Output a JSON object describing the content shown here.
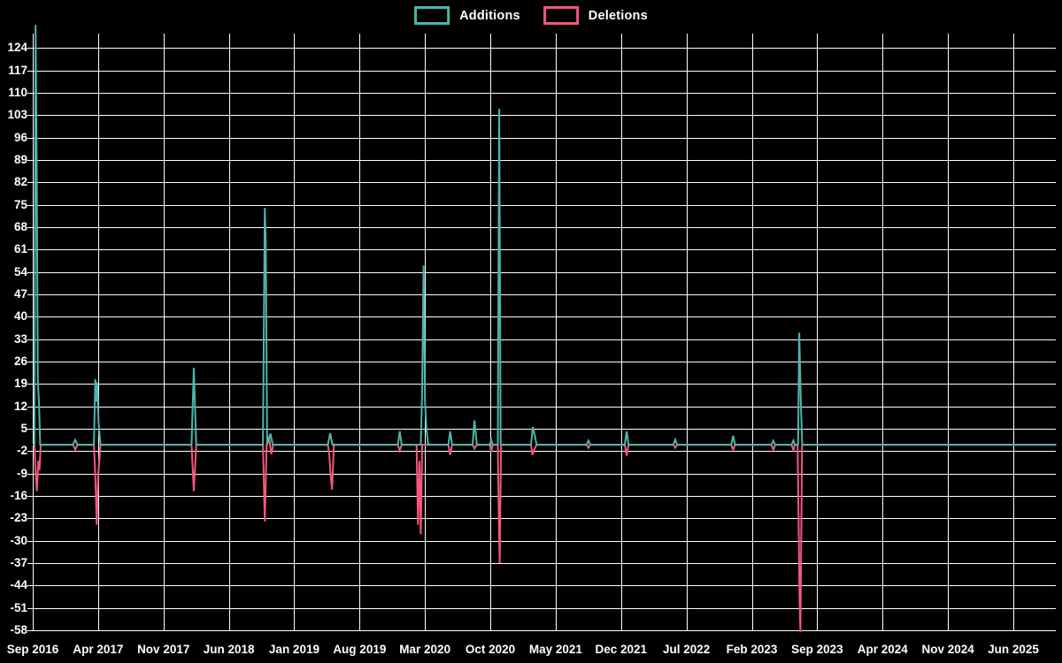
{
  "colors": {
    "background": "#000000",
    "grid": "#ffffff",
    "text": "#ffffff",
    "additions": "#4db6ac",
    "deletions": "#f4587c"
  },
  "legend": {
    "items": [
      {
        "label": "Additions",
        "color": "#4db6ac"
      },
      {
        "label": "Deletions",
        "color": "#f4587c"
      }
    ]
  },
  "chart_data": {
    "type": "line",
    "title": "",
    "xlabel": "",
    "ylabel": "",
    "legend_position": "top-center",
    "grid": true,
    "x_axis": {
      "unit": "months since Sep 2016",
      "range": [
        0,
        109.6
      ],
      "tick_months": [
        0,
        7,
        14,
        21,
        28,
        35,
        42,
        49,
        56,
        63,
        70,
        77,
        84,
        91,
        98,
        105
      ],
      "tick_labels": [
        "Sep 2016",
        "Apr 2017",
        "Nov 2017",
        "Jun 2018",
        "Jan 2019",
        "Aug 2019",
        "Mar 2020",
        "Oct 2020",
        "May 2021",
        "Dec 2021",
        "Jul 2022",
        "Feb 2023",
        "Sep 2023",
        "Apr 2024",
        "Nov 2024",
        "Jun 2025"
      ]
    },
    "y_axis": {
      "range": [
        -58,
        131
      ],
      "ticks": [
        124,
        117,
        110,
        103,
        96,
        89,
        82,
        75,
        68,
        61,
        54,
        47,
        40,
        33,
        26,
        19,
        12,
        5,
        -2,
        -9,
        -16,
        -23,
        -30,
        -37,
        -44,
        -51,
        -58
      ]
    },
    "series": [
      {
        "name": "Additions",
        "color": "#4db6ac",
        "points": [
          [
            0,
            0
          ],
          [
            0.18,
            0
          ],
          [
            0.3,
            131.5
          ],
          [
            0.42,
            89
          ],
          [
            0.55,
            20
          ],
          [
            0.68,
            12
          ],
          [
            0.8,
            0
          ],
          [
            4.3,
            0
          ],
          [
            4.55,
            1.5
          ],
          [
            4.8,
            0
          ],
          [
            6.55,
            0
          ],
          [
            6.7,
            20.5
          ],
          [
            6.8,
            13.5
          ],
          [
            6.9,
            19.5
          ],
          [
            7.05,
            7
          ],
          [
            7.25,
            0
          ],
          [
            17.0,
            0
          ],
          [
            17.25,
            24
          ],
          [
            17.5,
            0
          ],
          [
            24.65,
            0
          ],
          [
            24.85,
            74
          ],
          [
            24.95,
            63
          ],
          [
            25.1,
            0
          ],
          [
            25.45,
            3.5
          ],
          [
            25.7,
            0
          ],
          [
            31.6,
            0
          ],
          [
            31.85,
            3.6
          ],
          [
            32.1,
            0
          ],
          [
            39.1,
            0
          ],
          [
            39.3,
            4.2
          ],
          [
            39.5,
            0
          ],
          [
            41.55,
            0
          ],
          [
            41.7,
            17
          ],
          [
            41.85,
            56
          ],
          [
            42.0,
            14
          ],
          [
            42.15,
            5
          ],
          [
            42.35,
            0
          ],
          [
            44.5,
            0
          ],
          [
            44.7,
            4.2
          ],
          [
            44.9,
            0
          ],
          [
            47.1,
            0
          ],
          [
            47.3,
            7.6
          ],
          [
            47.55,
            0
          ],
          [
            48.95,
            0
          ],
          [
            49.1,
            1.5
          ],
          [
            49.25,
            0
          ],
          [
            49.8,
            0
          ],
          [
            49.95,
            105
          ],
          [
            50.1,
            0
          ],
          [
            53.35,
            0
          ],
          [
            53.55,
            5.6
          ],
          [
            53.75,
            3
          ],
          [
            53.95,
            0
          ],
          [
            59.3,
            0
          ],
          [
            59.5,
            1.3
          ],
          [
            59.7,
            0
          ],
          [
            63.4,
            0
          ],
          [
            63.6,
            4.2
          ],
          [
            63.8,
            0
          ],
          [
            68.6,
            0
          ],
          [
            68.8,
            1.6
          ],
          [
            69.0,
            0
          ],
          [
            74.8,
            0
          ],
          [
            75.0,
            2.8
          ],
          [
            75.2,
            0
          ],
          [
            79.1,
            0
          ],
          [
            79.3,
            1.3
          ],
          [
            79.5,
            0
          ],
          [
            81.25,
            0
          ],
          [
            81.45,
            1.3
          ],
          [
            81.6,
            0
          ],
          [
            81.95,
            0
          ],
          [
            82.08,
            35
          ],
          [
            82.25,
            13
          ],
          [
            82.4,
            0
          ],
          [
            109.6,
            0
          ]
        ]
      },
      {
        "name": "Deletions",
        "color": "#f4587c",
        "points": [
          [
            0,
            0
          ],
          [
            0.18,
            0
          ],
          [
            0.3,
            -8
          ],
          [
            0.45,
            -14.5
          ],
          [
            0.6,
            -5
          ],
          [
            0.72,
            -8
          ],
          [
            0.85,
            0
          ],
          [
            4.3,
            0
          ],
          [
            4.55,
            -1.5
          ],
          [
            4.8,
            0
          ],
          [
            6.55,
            0
          ],
          [
            6.7,
            -10
          ],
          [
            6.85,
            -25
          ],
          [
            7.0,
            -10
          ],
          [
            7.25,
            0
          ],
          [
            17.0,
            0
          ],
          [
            17.25,
            -14.5
          ],
          [
            17.5,
            0
          ],
          [
            24.65,
            0
          ],
          [
            24.85,
            -24
          ],
          [
            25.05,
            0
          ],
          [
            25.3,
            2.5
          ],
          [
            25.55,
            -3
          ],
          [
            25.75,
            0
          ],
          [
            31.6,
            0
          ],
          [
            31.75,
            -3
          ],
          [
            31.9,
            -9.5
          ],
          [
            32.05,
            -14
          ],
          [
            32.25,
            0
          ],
          [
            39.1,
            0
          ],
          [
            39.3,
            -1.8
          ],
          [
            39.5,
            0
          ],
          [
            41.1,
            0
          ],
          [
            41.25,
            -25
          ],
          [
            41.4,
            -5
          ],
          [
            41.55,
            -28
          ],
          [
            41.7,
            0
          ],
          [
            44.5,
            0
          ],
          [
            44.7,
            -3.2
          ],
          [
            44.9,
            0
          ],
          [
            47.1,
            0
          ],
          [
            47.3,
            -1.2
          ],
          [
            47.55,
            0
          ],
          [
            48.95,
            0
          ],
          [
            49.1,
            -2.2
          ],
          [
            49.25,
            0
          ],
          [
            49.8,
            0
          ],
          [
            49.9,
            -22
          ],
          [
            50.0,
            -37
          ],
          [
            50.15,
            0
          ],
          [
            53.35,
            0
          ],
          [
            53.5,
            -3.2
          ],
          [
            53.7,
            -1.5
          ],
          [
            53.95,
            0
          ],
          [
            59.3,
            0
          ],
          [
            59.5,
            -1
          ],
          [
            59.7,
            0
          ],
          [
            63.4,
            0
          ],
          [
            63.6,
            -3.4
          ],
          [
            63.8,
            0
          ],
          [
            68.6,
            0
          ],
          [
            68.8,
            -1
          ],
          [
            69.0,
            0
          ],
          [
            74.8,
            0
          ],
          [
            75.0,
            -1.6
          ],
          [
            75.2,
            0
          ],
          [
            79.1,
            0
          ],
          [
            79.3,
            -1.6
          ],
          [
            79.5,
            0
          ],
          [
            81.25,
            0
          ],
          [
            81.45,
            -1.6
          ],
          [
            81.6,
            0
          ],
          [
            81.9,
            0
          ],
          [
            82.0,
            -22
          ],
          [
            82.1,
            -47
          ],
          [
            82.2,
            -58.5
          ],
          [
            82.38,
            0
          ],
          [
            109.6,
            0
          ]
        ]
      }
    ]
  }
}
